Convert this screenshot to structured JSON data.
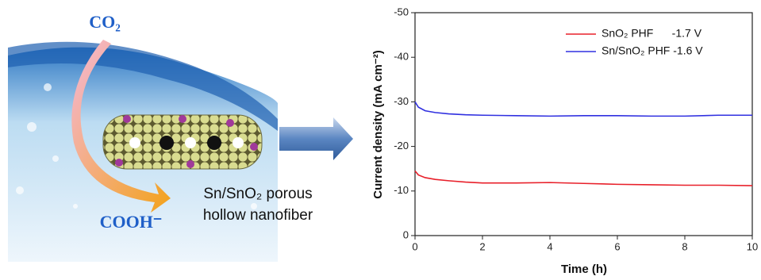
{
  "illustration": {
    "labels": [
      "CO₂",
      "COOH⁻",
      "Sn/SnO₂ porous",
      "hollow nanofiber"
    ]
  },
  "chart_data": {
    "type": "line",
    "x": [
      0,
      0.1,
      0.3,
      0.6,
      1,
      1.5,
      2,
      3,
      4,
      5,
      6,
      7,
      8,
      9,
      10
    ],
    "series": [
      {
        "name": "SnO₂ PHF      -1.7 V",
        "color": "#e8202a",
        "values": [
          -14.5,
          -13.6,
          -13,
          -12.6,
          -12.3,
          -12,
          -11.8,
          -11.8,
          -11.9,
          -11.7,
          -11.5,
          -11.4,
          -11.3,
          -11.3,
          -11.2
        ]
      },
      {
        "name": "Sn/SnO₂ PHF -1.6 V",
        "color": "#3030e0",
        "values": [
          -30,
          -28.8,
          -28,
          -27.6,
          -27.3,
          -27.1,
          -27,
          -26.9,
          -26.8,
          -26.9,
          -26.9,
          -26.8,
          -26.8,
          -27,
          -27
        ]
      }
    ],
    "xlabel": "Time (h)",
    "ylabel": "Current density (mA cm⁻²)",
    "xlim": [
      0,
      10
    ],
    "xticks": [
      0,
      2,
      4,
      6,
      8,
      10
    ],
    "ylim": [
      0,
      -50
    ],
    "yticks": [
      0,
      -10,
      -20,
      -30,
      -40,
      -50
    ],
    "legend": "upper right"
  }
}
